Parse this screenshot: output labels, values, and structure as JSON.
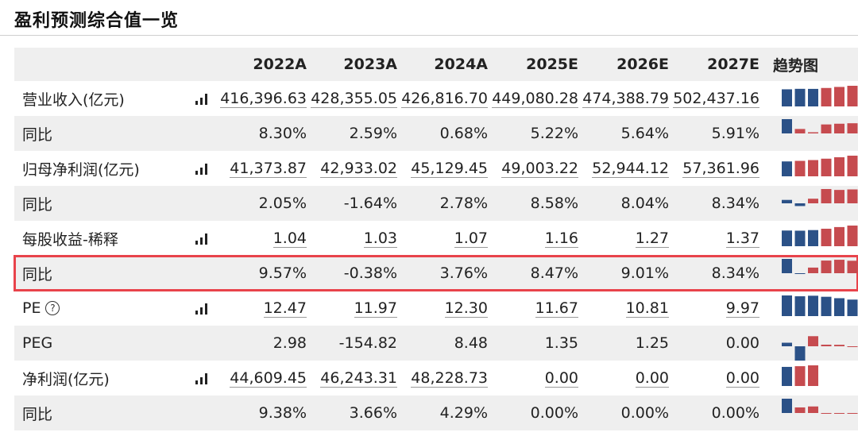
{
  "page": {
    "title": "盈利预测综合值一览"
  },
  "table": {
    "headers": [
      "",
      "2022A",
      "2023A",
      "2024A",
      "2025E",
      "2026E",
      "2027E"
    ],
    "trend_header": "趋势图",
    "rows": [
      {
        "label": "营业收入(亿元)",
        "icon": "bar-chart-icon",
        "values": [
          "416,396.63",
          "428,355.05",
          "426,816.70",
          "449,080.28",
          "474,388.79",
          "502,437.16"
        ],
        "trend": [
          416396.63,
          428355.05,
          426816.7,
          449080.28,
          474388.79,
          502437.16
        ],
        "trend_type": "level"
      },
      {
        "label": "同比",
        "values": [
          "8.30%",
          "2.59%",
          "0.68%",
          "5.22%",
          "5.64%",
          "5.91%"
        ],
        "trend": [
          8.3,
          2.59,
          0.68,
          5.22,
          5.64,
          5.91
        ],
        "trend_type": "delta"
      },
      {
        "label": "归母净利润(亿元)",
        "icon": "bar-chart-icon",
        "values": [
          "41,373.87",
          "42,933.02",
          "45,129.45",
          "49,003.22",
          "52,944.12",
          "57,361.96"
        ],
        "trend": [
          41373.87,
          42933.02,
          45129.45,
          49003.22,
          52944.12,
          57361.96
        ],
        "trend_type": "level"
      },
      {
        "label": "同比",
        "values": [
          "2.05%",
          "-1.64%",
          "2.78%",
          "8.58%",
          "8.04%",
          "8.34%"
        ],
        "trend": [
          2.05,
          -1.64,
          2.78,
          8.58,
          8.04,
          8.34
        ],
        "trend_type": "delta"
      },
      {
        "label": "每股收益-稀释",
        "icon": "bar-chart-icon",
        "values": [
          "1.04",
          "1.03",
          "1.07",
          "1.16",
          "1.27",
          "1.37"
        ],
        "trend": [
          1.04,
          1.03,
          1.07,
          1.16,
          1.27,
          1.37
        ],
        "trend_type": "level"
      },
      {
        "label": "同比",
        "values": [
          "9.57%",
          "-0.38%",
          "3.76%",
          "8.47%",
          "9.01%",
          "8.34%"
        ],
        "trend": [
          9.57,
          -0.38,
          3.76,
          8.47,
          9.01,
          8.34
        ],
        "trend_type": "delta",
        "highlighted": true
      },
      {
        "label": "PE",
        "help_icon": "question-circle-icon",
        "icon": "bar-chart-icon",
        "values": [
          "12.47",
          "11.97",
          "12.30",
          "11.67",
          "10.81",
          "9.97"
        ],
        "trend": [
          12.47,
          11.97,
          12.3,
          11.67,
          10.81,
          9.97
        ],
        "trend_type": "level"
      },
      {
        "label": "PEG",
        "values": [
          "2.98",
          "-154.82",
          "8.48",
          "1.35",
          "1.25",
          "0.00"
        ],
        "trend": [
          2.98,
          -154.82,
          8.48,
          1.35,
          1.25,
          0.0
        ],
        "trend_type": "peg"
      },
      {
        "label": "净利润(亿元)",
        "icon": "bar-chart-icon",
        "values": [
          "44,609.45",
          "46,243.31",
          "48,228.73",
          "0.00",
          "0.00",
          "0.00"
        ],
        "trend": [
          44609.45,
          46243.31,
          48228.73,
          0,
          0,
          0
        ],
        "trend_type": "level"
      },
      {
        "label": "同比",
        "values": [
          "9.38%",
          "3.66%",
          "4.29%",
          "0.00%",
          "0.00%",
          "0.00%"
        ],
        "trend": [
          9.38,
          3.66,
          4.29,
          0,
          0,
          0
        ],
        "trend_type": "delta"
      }
    ]
  },
  "colors": {
    "bar_blue": "#2b5187",
    "bar_red": "#c64b4f",
    "highlight_border": "#e8434b",
    "row_shade": "#efefef"
  }
}
